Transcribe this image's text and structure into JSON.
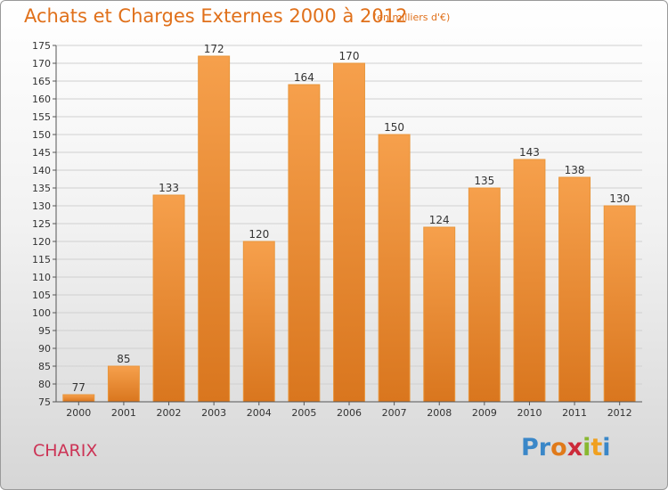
{
  "title": "Achats et Charges Externes 2000 à 2012",
  "subtitle": "(en milliers d'€)",
  "commune": "CHARIX",
  "logo": {
    "letters": [
      "P",
      "r",
      "o",
      "x",
      "i",
      "t",
      "i"
    ],
    "colors": [
      "#3a87c8",
      "#3a87c8",
      "#e07a1a",
      "#cc2a3a",
      "#88b830",
      "#f0a020",
      "#3a87c8"
    ]
  },
  "colors": {
    "bar_light": "#f6a04c",
    "bar_dark": "#d9761e",
    "title": "#e0701a",
    "commune": "#cc3355"
  },
  "chart_data": {
    "type": "bar",
    "categories": [
      "2000",
      "2001",
      "2002",
      "2003",
      "2004",
      "2005",
      "2006",
      "2007",
      "2008",
      "2009",
      "2010",
      "2011",
      "2012"
    ],
    "values": [
      77,
      85,
      133,
      172,
      120,
      164,
      170,
      150,
      124,
      135,
      143,
      138,
      130
    ],
    "value_labels": [
      "77",
      "85",
      "133",
      "172",
      "120",
      "164",
      "170",
      "150",
      "124",
      "135",
      "143",
      "138",
      "130"
    ],
    "ylim": [
      75,
      175
    ],
    "yticks": [
      75,
      80,
      85,
      90,
      95,
      100,
      105,
      110,
      115,
      120,
      125,
      130,
      135,
      140,
      145,
      150,
      155,
      160,
      165,
      170,
      175
    ],
    "ytick_labels": [
      "75",
      "80",
      "85",
      "90",
      "95",
      "100",
      "105",
      "110",
      "115",
      "120",
      "125",
      "130",
      "135",
      "140",
      "145",
      "150",
      "155",
      "160",
      "165",
      "170",
      "175"
    ],
    "grid": true
  }
}
